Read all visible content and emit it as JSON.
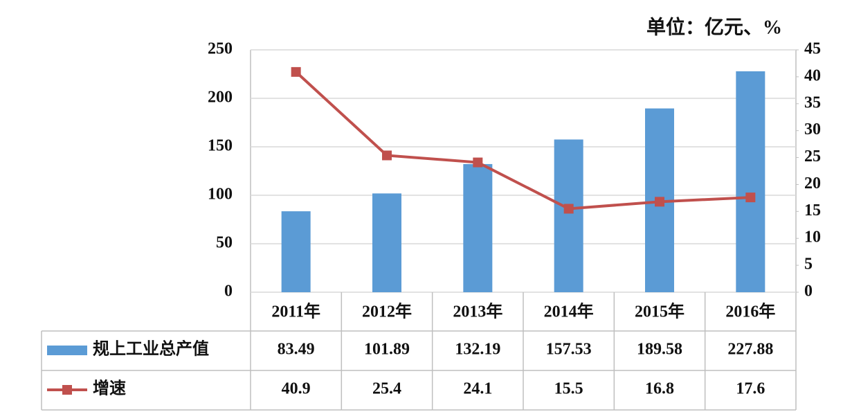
{
  "chart_data": {
    "type": "bar",
    "annotation": "单位：亿元、%",
    "categories": [
      "2011年",
      "2012年",
      "2013年",
      "2014年",
      "2015年",
      "2016年"
    ],
    "series": [
      {
        "name": "规上工业总产值",
        "type": "bar",
        "color": "#5b9bd5",
        "values": [
          83.49,
          101.89,
          132.19,
          157.53,
          189.58,
          227.88
        ]
      },
      {
        "name": "增速",
        "type": "line",
        "color": "#c0504d",
        "axis": "y2",
        "values": [
          40.9,
          25.4,
          24.1,
          15.5,
          16.8,
          17.6
        ]
      }
    ],
    "ylim": [
      0,
      250
    ],
    "yticks": [
      0,
      50,
      100,
      150,
      200,
      250
    ],
    "y2lim": [
      0,
      45
    ],
    "y2ticks": [
      0,
      5,
      10,
      15,
      20,
      25,
      30,
      35,
      40,
      45
    ],
    "grid": true
  }
}
